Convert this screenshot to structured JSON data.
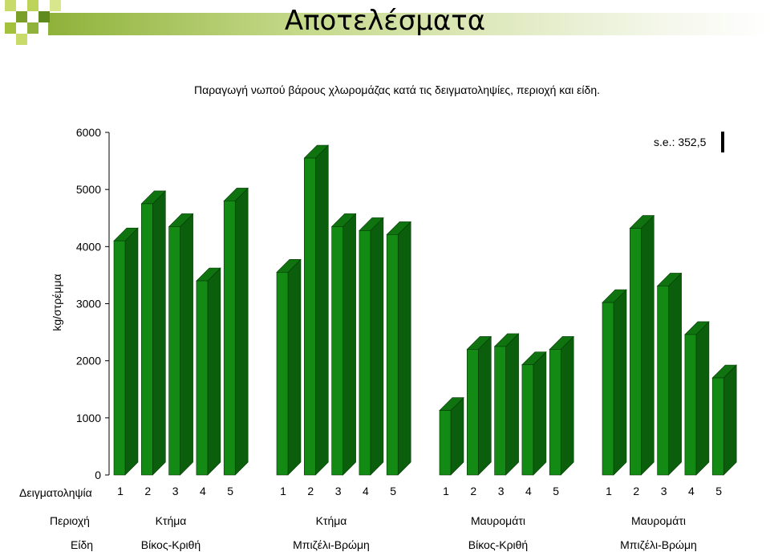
{
  "slide_title": "Αποτελέσματα",
  "chart_data": {
    "type": "bar",
    "title": "Παραγωγή νωπού βάρους χλωρομάζας κατά τις δειγματοληψίες, περιοχή και είδη.",
    "ylabel": "kg/στρέμμα",
    "ylim": [
      0,
      6000
    ],
    "yticks": [
      "0",
      "1000",
      "2000",
      "3000",
      "4000",
      "5000",
      "6000"
    ],
    "annotation": "s.e.: 352,5",
    "color": "#138a13",
    "sample_row_label": "Δειγματοληψία",
    "region_row_label": "Περιοχή",
    "species_row_label": "Είδη",
    "groups": [
      {
        "region": "Κτήμα",
        "species": "Βίκος-Κριθή",
        "categories": [
          "1",
          "2",
          "3",
          "4",
          "5"
        ],
        "values": [
          4100,
          4750,
          4350,
          3400,
          4800
        ]
      },
      {
        "region": "Κτήμα",
        "species": "Μπιζέλι-Βρώμη",
        "categories": [
          "1",
          "2",
          "3",
          "4",
          "5"
        ],
        "values": [
          3550,
          5550,
          4350,
          4280,
          4210
        ]
      },
      {
        "region": "Μαυρομάτι",
        "species": "Βίκος-Κριθή",
        "categories": [
          "1",
          "2",
          "3",
          "4",
          "5"
        ],
        "values": [
          1130,
          2200,
          2250,
          1930,
          2200
        ]
      },
      {
        "region": "Μαυρομάτι",
        "species": "Μπιζέλι-Βρώμη",
        "categories": [
          "1",
          "2",
          "3",
          "4",
          "5"
        ],
        "values": [
          3020,
          4320,
          3310,
          2460,
          1700
        ]
      }
    ]
  }
}
